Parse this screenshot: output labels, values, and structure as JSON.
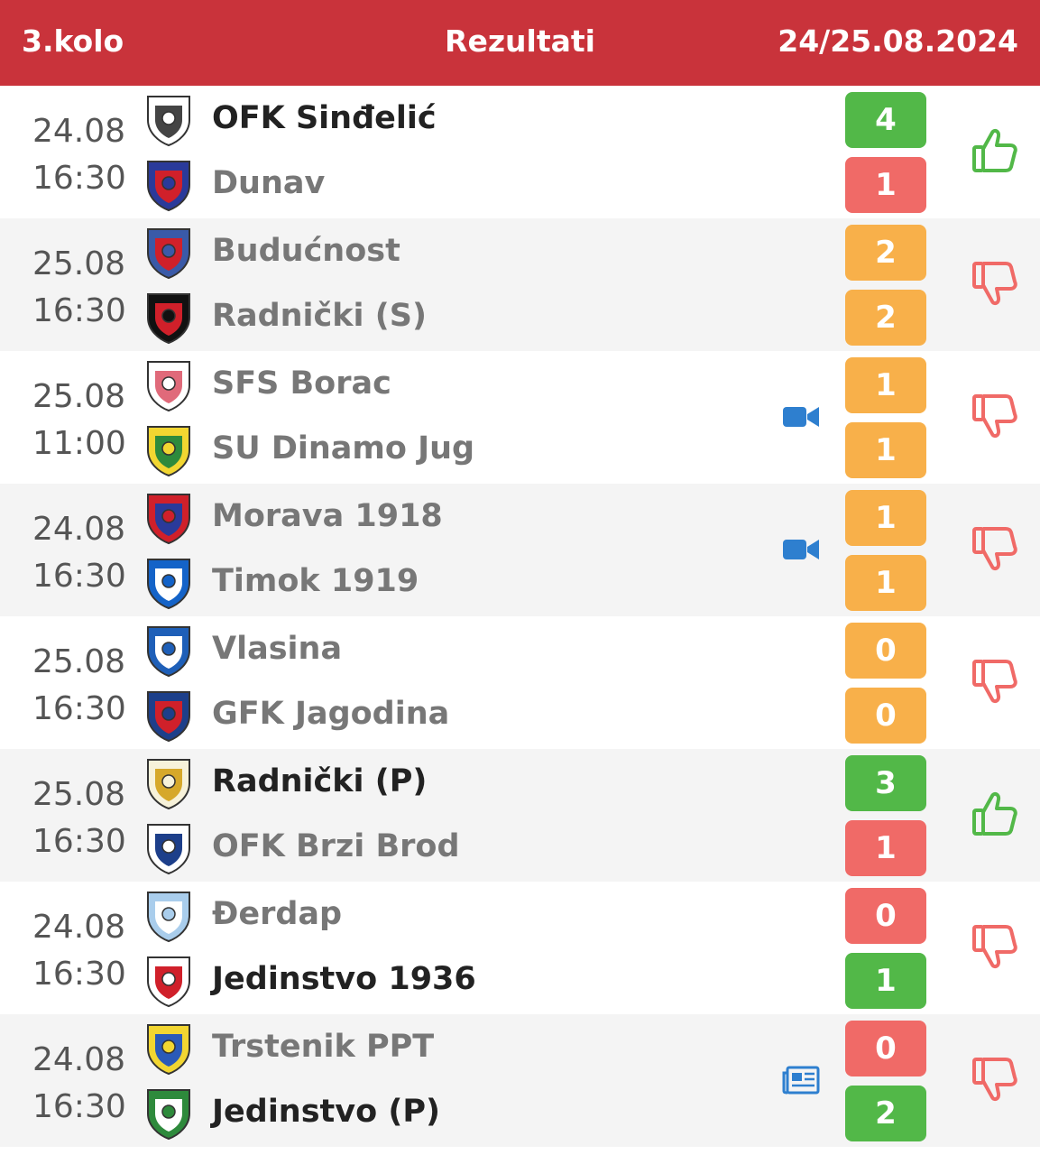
{
  "header": {
    "round": "3.kolo",
    "title": "Rezultati",
    "dates": "24/25.08.2024"
  },
  "colors": {
    "header": "#c9333b",
    "win": "#52b848",
    "loss": "#f06a67",
    "draw": "#f8b04a",
    "media": "#2e7fcf"
  },
  "matches": [
    {
      "date": "24.08",
      "time": "16:30",
      "home": {
        "name": "OFK Sinđelić",
        "score": "4"
      },
      "away": {
        "name": "Dunav",
        "score": "1"
      },
      "media": "",
      "prediction": "thumbs-up-icon"
    },
    {
      "date": "25.08",
      "time": "16:30",
      "home": {
        "name": "Budućnost",
        "score": "2"
      },
      "away": {
        "name": "Radnički (S)",
        "score": "2"
      },
      "media": "",
      "prediction": "thumbs-down-icon"
    },
    {
      "date": "25.08",
      "time": "11:00",
      "home": {
        "name": "SFS Borac",
        "score": "1"
      },
      "away": {
        "name": "SU Dinamo Jug",
        "score": "1"
      },
      "media": "video-camera-icon",
      "prediction": "thumbs-down-icon"
    },
    {
      "date": "24.08",
      "time": "16:30",
      "home": {
        "name": "Morava 1918",
        "score": "1"
      },
      "away": {
        "name": "Timok 1919",
        "score": "1"
      },
      "media": "video-camera-icon",
      "prediction": "thumbs-down-icon"
    },
    {
      "date": "25.08",
      "time": "16:30",
      "home": {
        "name": "Vlasina",
        "score": "0"
      },
      "away": {
        "name": "GFK Jagodina",
        "score": "0"
      },
      "media": "",
      "prediction": "thumbs-down-icon"
    },
    {
      "date": "25.08",
      "time": "16:30",
      "home": {
        "name": "Radnički (P)",
        "score": "3"
      },
      "away": {
        "name": "OFK Brzi Brod",
        "score": "1"
      },
      "media": "",
      "prediction": "thumbs-up-icon"
    },
    {
      "date": "24.08",
      "time": "16:30",
      "home": {
        "name": "Đerdap",
        "score": "0"
      },
      "away": {
        "name": "Jedinstvo 1936",
        "score": "1"
      },
      "media": "",
      "prediction": "thumbs-down-icon"
    },
    {
      "date": "24.08",
      "time": "16:30",
      "home": {
        "name": "Trstenik PPT",
        "score": "0"
      },
      "away": {
        "name": "Jedinstvo (P)",
        "score": "2"
      },
      "media": "newspaper-icon",
      "prediction": "thumbs-down-icon"
    }
  ]
}
